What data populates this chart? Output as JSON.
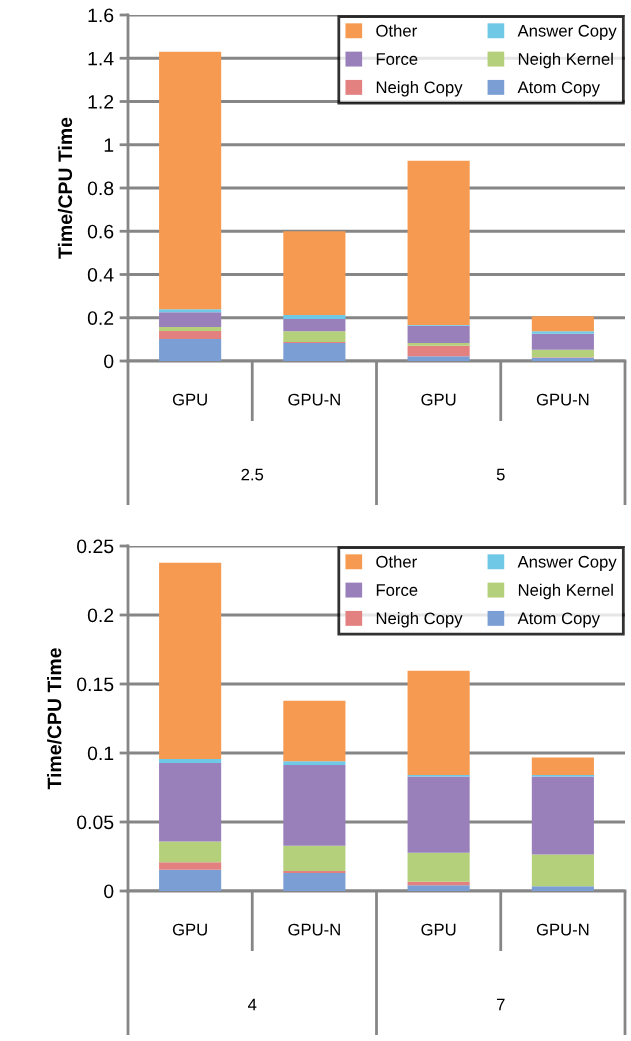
{
  "chart_data": [
    {
      "type": "bar",
      "stacked": true,
      "ylabel": "Time/CPU Time",
      "categories": [
        "GPU",
        "GPU-N",
        "GPU",
        "GPU-N"
      ],
      "annotations": [
        "2.5",
        "5"
      ],
      "ylim": [
        0,
        1.6
      ],
      "yticks": [
        0,
        0.2,
        0.4,
        0.6,
        0.8,
        1,
        1.2,
        1.4,
        1.6
      ],
      "grid": "y",
      "legend": "top right",
      "series": [
        {
          "name": "Atom Copy",
          "color": "#7b9fd4",
          "values": [
            0.102,
            0.083,
            0.022,
            0.015
          ]
        },
        {
          "name": "Neigh Copy",
          "color": "#e38080",
          "values": [
            0.037,
            0.005,
            0.048,
            0.002
          ]
        },
        {
          "name": "Neigh Kernel",
          "color": "#b5d07a",
          "values": [
            0.018,
            0.049,
            0.013,
            0.035
          ]
        },
        {
          "name": "Force",
          "color": "#9a80bb",
          "values": [
            0.069,
            0.057,
            0.08,
            0.074
          ]
        },
        {
          "name": "Answer Copy",
          "color": "#6fc8e6",
          "values": [
            0.013,
            0.019,
            0.004,
            0.011
          ]
        },
        {
          "name": "Other",
          "color": "#f59a50",
          "values": [
            1.191,
            0.387,
            0.759,
            0.07
          ]
        }
      ]
    },
    {
      "type": "bar",
      "stacked": true,
      "ylabel": "Time/CPU Time",
      "categories": [
        "GPU",
        "GPU-N",
        "GPU",
        "GPU-N"
      ],
      "annotations": [
        "4",
        "7"
      ],
      "ylim": [
        0,
        0.25
      ],
      "yticks": [
        0,
        0.05,
        0.1,
        0.15,
        0.2,
        0.25
      ],
      "grid": "y",
      "legend": "top right",
      "series": [
        {
          "name": "Atom Copy",
          "color": "#7b9fd4",
          "values": [
            0.0154,
            0.013,
            0.0041,
            0.0035
          ]
        },
        {
          "name": "Neigh Copy",
          "color": "#e38080",
          "values": [
            0.0055,
            0.0015,
            0.0026,
            0
          ]
        },
        {
          "name": "Neigh Kernel",
          "color": "#b5d07a",
          "values": [
            0.015,
            0.0182,
            0.0211,
            0.0229
          ]
        },
        {
          "name": "Force",
          "color": "#9a80bb",
          "values": [
            0.0568,
            0.0586,
            0.0551,
            0.0565
          ]
        },
        {
          "name": "Answer Copy",
          "color": "#6fc8e6",
          "values": [
            0.003,
            0.0028,
            0.0011,
            0.0011
          ]
        },
        {
          "name": "Other",
          "color": "#f59a50",
          "values": [
            0.1422,
            0.0438,
            0.0756,
            0.0128
          ]
        }
      ]
    }
  ]
}
